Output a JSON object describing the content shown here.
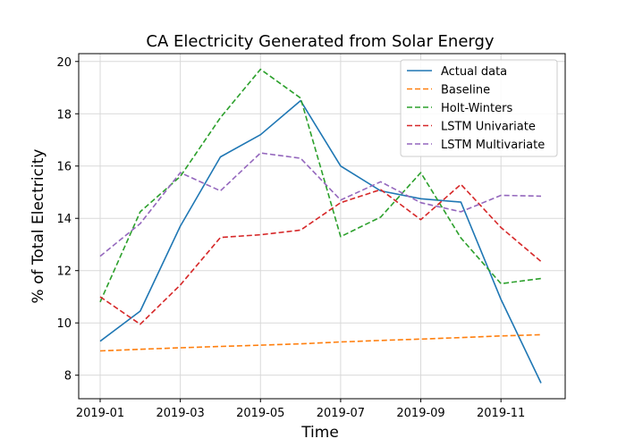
{
  "chart_data": {
    "type": "line",
    "title": "CA Electricity Generated from Solar Energy",
    "xlabel": "Time",
    "ylabel": "% of Total Electricity",
    "x": [
      "2019-01",
      "2019-02",
      "2019-03",
      "2019-04",
      "2019-05",
      "2019-06",
      "2019-07",
      "2019-08",
      "2019-09",
      "2019-10",
      "2019-11",
      "2019-12"
    ],
    "xticks": [
      "2019-01",
      "2019-03",
      "2019-05",
      "2019-07",
      "2019-09",
      "2019-11"
    ],
    "yticks": [
      8,
      10,
      12,
      14,
      16,
      18,
      20
    ],
    "ylim": [
      7.1,
      20.3
    ],
    "grid": true,
    "legend_position": "top-right",
    "series": [
      {
        "name": "Actual data",
        "color": "#1f77b4",
        "dash": "solid",
        "values": [
          9.3,
          10.45,
          13.7,
          16.35,
          17.2,
          18.5,
          16.0,
          15.05,
          14.75,
          14.62,
          10.9,
          7.7
        ]
      },
      {
        "name": "Baseline",
        "color": "#ff7f0e",
        "dash": "dashed",
        "values": [
          8.93,
          8.99,
          9.05,
          9.1,
          9.15,
          9.2,
          9.27,
          9.33,
          9.38,
          9.44,
          9.5,
          9.55
        ]
      },
      {
        "name": "Holt-Winters",
        "color": "#2ca02c",
        "dash": "dashed",
        "values": [
          10.8,
          14.25,
          15.6,
          17.85,
          19.7,
          18.6,
          13.3,
          14.05,
          15.75,
          13.25,
          11.5,
          11.7
        ]
      },
      {
        "name": "LSTM Univariate",
        "color": "#d62728",
        "dash": "dashed",
        "values": [
          11.0,
          9.95,
          11.45,
          13.27,
          13.37,
          13.55,
          14.6,
          15.1,
          13.95,
          15.3,
          13.65,
          12.35
        ]
      },
      {
        "name": "LSTM Multivariate",
        "color": "#9467bd",
        "dash": "dashed",
        "values": [
          12.55,
          13.8,
          15.75,
          15.05,
          16.5,
          16.3,
          14.7,
          15.4,
          14.6,
          14.25,
          14.88,
          14.85
        ]
      }
    ]
  }
}
